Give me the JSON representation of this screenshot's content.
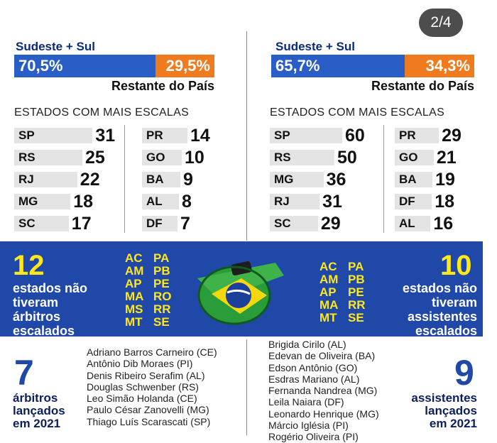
{
  "pager": "2/4",
  "left": {
    "region_label": "Sudeste + Sul",
    "sudeste_sul_pct": "70,5%",
    "restante_pct": "29,5%",
    "restante_label": "Restante do País",
    "sudeste_sul_share": 70.5,
    "estados_title": "ESTADOS COM MAIS ESCALAS",
    "col1": [
      {
        "uf": "SP",
        "n": "31"
      },
      {
        "uf": "RS",
        "n": "25"
      },
      {
        "uf": "RJ",
        "n": "22"
      },
      {
        "uf": "MG",
        "n": "18"
      },
      {
        "uf": "SC",
        "n": "17"
      }
    ],
    "col2": [
      {
        "uf": "PR",
        "n": "14"
      },
      {
        "uf": "GO",
        "n": "10"
      },
      {
        "uf": "BA",
        "n": "9"
      },
      {
        "uf": "AL",
        "n": "8"
      },
      {
        "uf": "DF",
        "n": "7"
      }
    ]
  },
  "right": {
    "region_label": "Sudeste + Sul",
    "sudeste_sul_pct": "65,7%",
    "restante_pct": "34,3%",
    "restante_label": "Restante do País",
    "sudeste_sul_share": 65.7,
    "estados_title": "ESTADOS COM MAIS ESCALAS",
    "col1": [
      {
        "uf": "SP",
        "n": "60"
      },
      {
        "uf": "RS",
        "n": "50"
      },
      {
        "uf": "MG",
        "n": "36"
      },
      {
        "uf": "RJ",
        "n": "31"
      },
      {
        "uf": "SC",
        "n": "29"
      }
    ],
    "col2": [
      {
        "uf": "PR",
        "n": "29"
      },
      {
        "uf": "GO",
        "n": "21"
      },
      {
        "uf": "BA",
        "n": "19"
      },
      {
        "uf": "DF",
        "n": "18"
      },
      {
        "uf": "AL",
        "n": "16"
      }
    ]
  },
  "band": {
    "left_number": "12",
    "left_text": [
      "estados não",
      "tiveram",
      "árbitros",
      "escalados"
    ],
    "left_ufs": [
      "AC",
      "PA",
      "AM",
      "PB",
      "AP",
      "PE",
      "MA",
      "RO",
      "MS",
      "RR",
      "MT",
      "SE"
    ],
    "right_ufs": [
      "AC",
      "PA",
      "AM",
      "PB",
      "AP",
      "PE",
      "MA",
      "RR",
      "MT",
      "SE"
    ],
    "right_number": "10",
    "right_text": [
      "estados não",
      "tiveram",
      "assistentes",
      "escalados"
    ]
  },
  "bottom_left": {
    "number": "7",
    "caption": [
      "árbitros",
      "lançados",
      "em 2021"
    ],
    "names": [
      "Adriano Barros Carneiro (CE)",
      "Antônio Dib Moraes (PI)",
      "Denis Ribeiro Serafim (AL)",
      "Douglas Schwenber (RS)",
      "Leo Simão Holanda (CE)",
      "Paulo César Zanovelli (MG)",
      "Thiago Luís Scarascati (SP)"
    ]
  },
  "bottom_right": {
    "number": "9",
    "caption": [
      "assistentes",
      "lançados",
      "em 2021"
    ],
    "names": [
      "Brigida Cirilo (AL)",
      "Edevan de Oliveira (BA)",
      "Edson Antônio (GO)",
      "Esdras Mariano (AL)",
      "Fernanda Nandrea (MG)",
      "Leila Naiara (DF)",
      "Leonardo Henrique (MG)",
      "Márcio Iglésia (PI)",
      "Rogério Oliveira (PI)"
    ]
  },
  "colors": {
    "blue": "#2a5ec7",
    "orange": "#f07a1e",
    "band": "#1f48a8",
    "yellow": "#ffe81a"
  }
}
